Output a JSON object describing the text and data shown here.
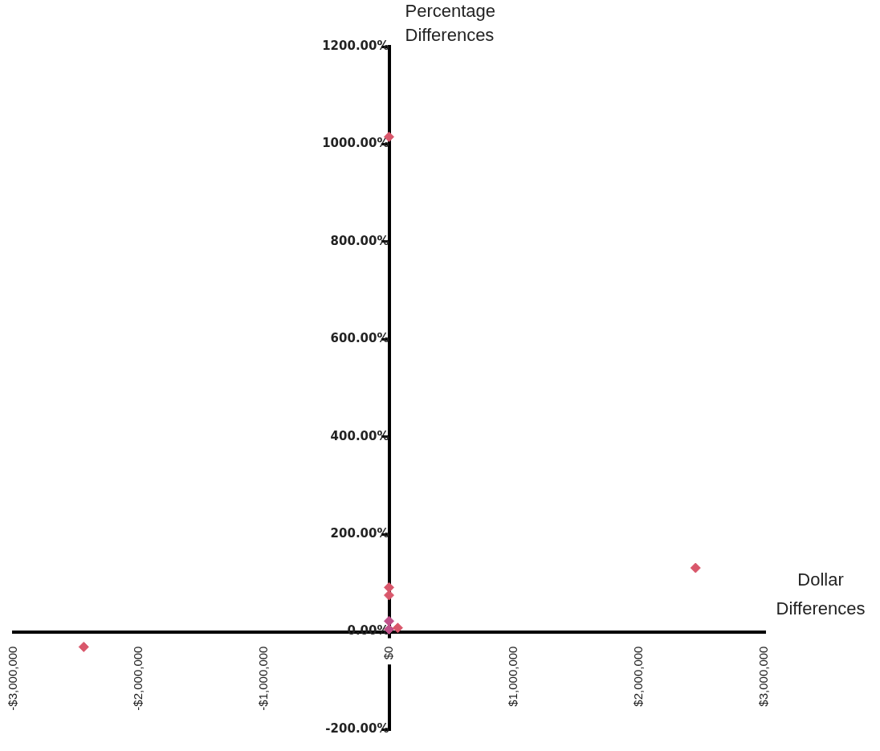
{
  "chart_data": {
    "type": "scatter",
    "xlabel": "Dollar Differences",
    "ylabel": "Percentage Differences",
    "x": [
      0,
      2450000,
      -2440000,
      0,
      0,
      0,
      0,
      70000
    ],
    "values": [
      1015,
      131,
      -31,
      91,
      75,
      5,
      22,
      8
    ],
    "colors": [
      "#d9576b",
      "#d9576b",
      "#d9576b",
      "#d9576b",
      "#d9576b",
      "#c0508a",
      "#c0508a",
      "#d9576b"
    ],
    "marker": "diamond",
    "grid": false,
    "xlim": [
      -3000000,
      3000000
    ],
    "xticks": [
      {
        "value": -3000000,
        "label": "-$3,000,000"
      },
      {
        "value": -2000000,
        "label": "-$2,000,000"
      },
      {
        "value": -1000000,
        "label": "-$1,000,000"
      },
      {
        "value": 0,
        "label": "$0"
      },
      {
        "value": 1000000,
        "label": "$1,000,000"
      },
      {
        "value": 2000000,
        "label": "$2,000,000"
      },
      {
        "value": 3000000,
        "label": "$3,000,000"
      }
    ],
    "ylim": [
      -200,
      1200
    ],
    "yticks": [
      {
        "value": -200,
        "label": "-200.00%"
      },
      {
        "value": 0,
        "label": "0.00%"
      },
      {
        "value": 200,
        "label": "200.00%"
      },
      {
        "value": 400,
        "label": "400.00%"
      },
      {
        "value": 600,
        "label": "600.00%"
      },
      {
        "value": 800,
        "label": "800.00%"
      },
      {
        "value": 1000,
        "label": "1000.00%"
      },
      {
        "value": 1200,
        "label": "1200.00%"
      }
    ]
  }
}
